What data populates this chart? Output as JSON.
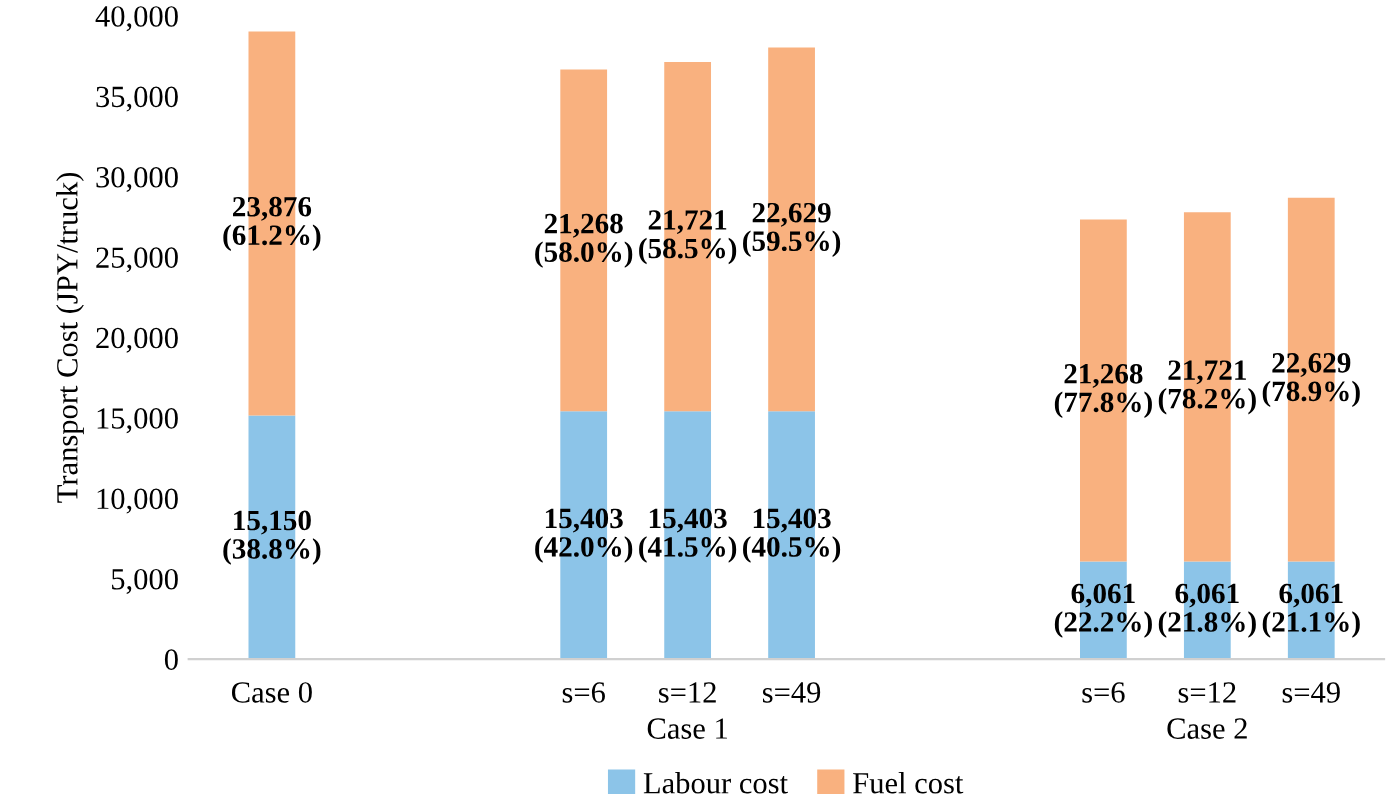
{
  "chart_data": {
    "type": "bar",
    "stacked": true,
    "ylabel": "Transport Cost (JPY/truck)",
    "categories": [
      "Case 0",
      null,
      null,
      "s=6",
      "s=12",
      "s=49",
      null,
      null,
      "s=6",
      "s=12",
      "s=49"
    ],
    "series": [
      {
        "name": "Labour cost",
        "color": "#8cc4e8",
        "values": [
          15150,
          null,
          null,
          15403,
          15403,
          15403,
          null,
          null,
          6061,
          6061,
          6061
        ],
        "value_labels": [
          "15,150\n(38.8%)",
          null,
          null,
          "15,403\n(42.0%)",
          "15,403\n(41.5%)",
          "15,403\n(40.5%)",
          null,
          null,
          "6,061\n(22.2%)",
          "6,061\n(21.8%)",
          "6,061\n(21.1%)"
        ]
      },
      {
        "name": "Fuel cost",
        "color": "#f9b17f",
        "values": [
          23876,
          null,
          null,
          21268,
          21721,
          22629,
          null,
          null,
          21268,
          21721,
          22629
        ],
        "value_labels": [
          "23,876\n(61.2%)",
          null,
          null,
          "21,268\n(58.0%)",
          "21,721\n(58.5%)",
          "22,629\n(59.5%)",
          null,
          null,
          "21,268\n(77.8%)",
          "21,721\n(78.2%)",
          "22,629\n(78.9%)"
        ]
      }
    ],
    "annotations": [
      "Case 1",
      "Case 2"
    ],
    "ylim": [
      0,
      40000
    ],
    "yticks": [
      0,
      {
        "value": 5000,
        "label": "5,000"
      },
      {
        "value": 10000,
        "label": "10,000"
      },
      {
        "value": 15000,
        "label": "15,000"
      },
      {
        "value": 20000,
        "label": "20,000"
      },
      {
        "value": 25000,
        "label": "25,000"
      },
      {
        "value": 30000,
        "label": "30,000"
      },
      {
        "value": 35000,
        "label": "35,000"
      },
      {
        "value": 40000,
        "label": "40,000"
      }
    ],
    "grid": false,
    "legend": "bottom"
  }
}
